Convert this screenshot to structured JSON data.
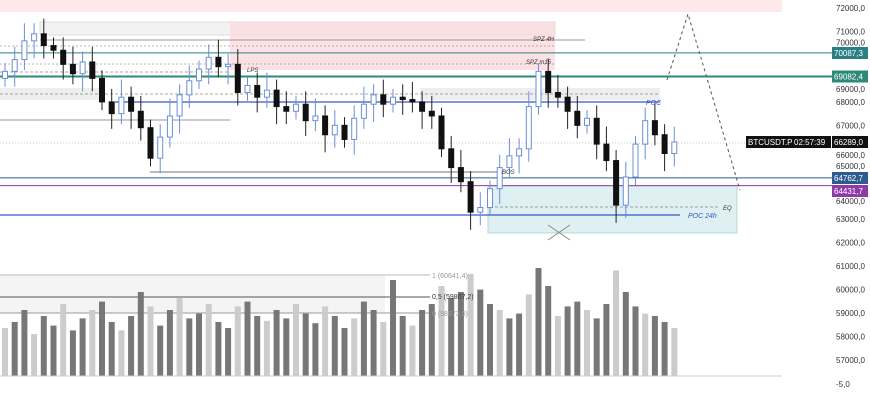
{
  "symbol": "BTCUSDT.P",
  "last_price": "66289,0",
  "countdown": "02:57:39",
  "price_axis": [
    "72000,0",
    "71000,0",
    "70000,0",
    "69000,0",
    "68000,0",
    "67000,0",
    "66000,0",
    "65000,0",
    "64000,0",
    "63000,0",
    "62000,0",
    "61000,0",
    "60000,0",
    "59000,0",
    "58000,0",
    "57000,0"
  ],
  "volume_axis_label": "-5,0",
  "level_tags": [
    {
      "label": "70087,3",
      "price": 70087.3,
      "color": "#2a7f86"
    },
    {
      "label": "69082,4",
      "price": 69082.4,
      "color": "#2e8a76"
    },
    {
      "label": "64762,7",
      "price": 64762.7,
      "color": "#2f5c8f"
    },
    {
      "label": "64431,7",
      "price": 64431.7,
      "color": "#8e3aa8"
    }
  ],
  "annotations": {
    "spz_4h": "SPZ 4H",
    "spz_m15": "SPZ m15",
    "lps": "LPS",
    "bos": "BOS",
    "poc": "POC",
    "poc_24h": "POC 24h",
    "eq": "EQ"
  },
  "fib": [
    "1 (60641,4)",
    "0,5 (59807,2)",
    "0 (58973,0)"
  ],
  "chart_data": {
    "type": "candlestick",
    "ylim": [
      56600,
      72200
    ],
    "closes": [
      69.3,
      69.8,
      70.6,
      70.9,
      70.4,
      70.2,
      69.6,
      69.2,
      69.7,
      69.0,
      68.0,
      67.5,
      68.2,
      67.6,
      66.9,
      65.6,
      66.5,
      67.4,
      68.3,
      68.9,
      69.4,
      69.9,
      69.5,
      69.6,
      68.4,
      68.7,
      68.2,
      68.5,
      67.8,
      67.6,
      67.9,
      67.2,
      67.4,
      66.6,
      67.0,
      66.4,
      67.3,
      67.9,
      68.3,
      67.9,
      68.2,
      68.1,
      68.0,
      67.6,
      67.4,
      66.0,
      65.2,
      64.6,
      63.3,
      63.5,
      64.3,
      65.2,
      65.7,
      66.0,
      67.8,
      69.3,
      68.4,
      68.2,
      67.6,
      67.0,
      67.3,
      66.2,
      65.5,
      63.6,
      64.8,
      66.2,
      67.2,
      66.6,
      65.8,
      66.289
    ],
    "closes_unit": "thousand USDT",
    "volume": [
      40,
      45,
      55,
      35,
      50,
      42,
      60,
      38,
      48,
      55,
      62,
      45,
      38,
      50,
      70,
      58,
      42,
      55,
      65,
      48,
      52,
      60,
      45,
      40,
      58,
      62,
      50,
      46,
      55,
      48,
      60,
      52,
      44,
      58,
      50,
      40,
      48,
      62,
      55,
      45,
      80,
      50,
      42,
      55,
      60,
      75,
      65,
      70,
      85,
      72,
      60,
      55,
      48,
      52,
      68,
      90,
      75,
      50,
      58,
      62,
      55,
      48,
      60,
      88,
      70,
      58,
      52,
      50,
      45,
      40
    ]
  }
}
